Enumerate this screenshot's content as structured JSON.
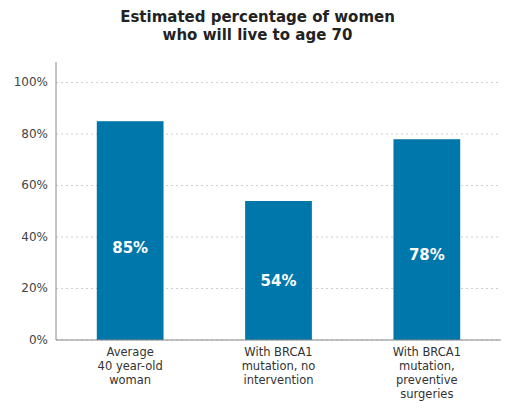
{
  "chart_data": {
    "type": "bar",
    "title": "Estimated percentage of women\nwho will live to age 70",
    "categories": [
      "Average\n40 year-old\nwoman",
      "With BRCA1\nmutation, no\nintervention",
      "With BRCA1\nmutation,\npreventive\nsurgeries"
    ],
    "values": [
      85,
      54,
      78
    ],
    "value_labels": [
      "85%",
      "54%",
      "78%"
    ],
    "data_labels": true,
    "color": "#0077aa",
    "ylim": [
      0,
      108
    ],
    "yticks": [
      {
        "value": 0,
        "label": "0%"
      },
      {
        "value": 20,
        "label": "20%"
      },
      {
        "value": 40,
        "label": "40%"
      },
      {
        "value": 60,
        "label": "60%"
      },
      {
        "value": 80,
        "label": "80%"
      },
      {
        "value": 100,
        "label": "100%"
      }
    ],
    "grid": true
  }
}
